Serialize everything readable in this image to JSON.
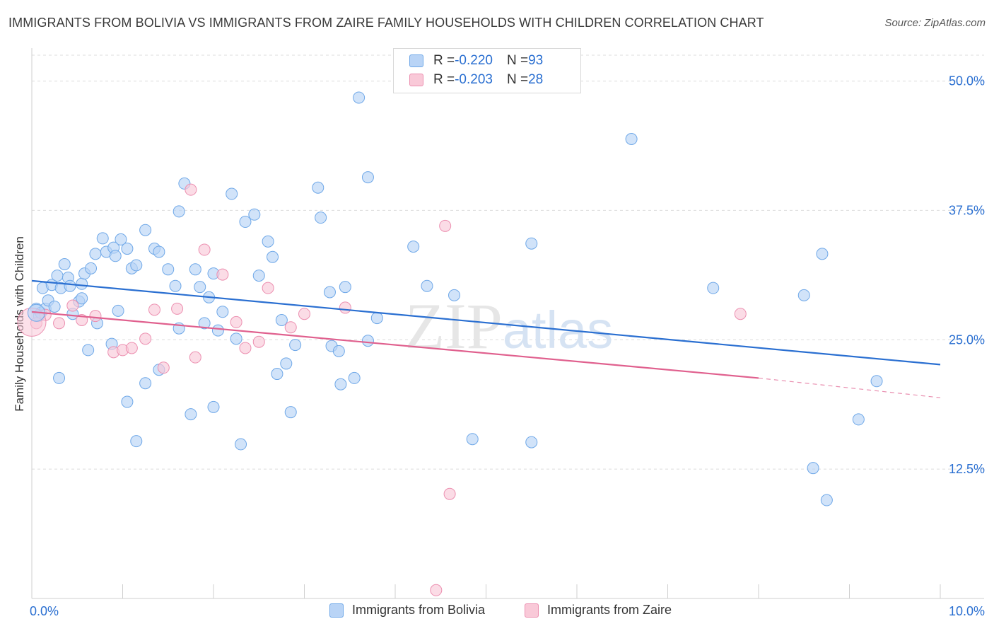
{
  "title": "IMMIGRANTS FROM BOLIVIA VS IMMIGRANTS FROM ZAIRE FAMILY HOUSEHOLDS WITH CHILDREN CORRELATION CHART",
  "source": "Source: ZipAtlas.com",
  "watermark": "ZIPatlas",
  "stats": [
    {
      "r_label": "R = ",
      "r_value": "-0.220",
      "n_label": "N = ",
      "n_value": "93",
      "color": "#6fa8e8",
      "fill": "#b9d4f6"
    },
    {
      "r_label": "R = ",
      "r_value": "-0.203",
      "n_label": "N = ",
      "n_value": "28",
      "color": "#ec8fb0",
      "fill": "#f9c9d8"
    }
  ],
  "chart_data": {
    "type": "scatter",
    "title": "IMMIGRANTS FROM BOLIVIA VS IMMIGRANTS FROM ZAIRE FAMILY HOUSEHOLDS WITH CHILDREN CORRELATION CHART",
    "xlabel": "",
    "ylabel": "Family Households with Children",
    "xlim": [
      0,
      10
    ],
    "ylim": [
      0,
      52.5
    ],
    "x_tick_labels": [
      {
        "value": 0,
        "label": "0.0%"
      },
      {
        "value": 10,
        "label": "10.0%"
      }
    ],
    "y_tick_labels": [
      {
        "value": 12.5,
        "label": "12.5%"
      },
      {
        "value": 25,
        "label": "25.0%"
      },
      {
        "value": 37.5,
        "label": "37.5%"
      },
      {
        "value": 50,
        "label": "50.0%"
      }
    ],
    "grid": "horizontal dashed",
    "legend_position": "bottom-center",
    "series": [
      {
        "name": "Immigrants from Bolivia",
        "color": "#6fa8e8",
        "fill": "#b9d4f6",
        "line_color": "#2a6fd1",
        "trend": {
          "x0": 0,
          "y0": 30.7,
          "x1": 10,
          "y1": 22.6
        },
        "points": [
          [
            0.05,
            28.0
          ],
          [
            0.08,
            27.3
          ],
          [
            0.1,
            27.6
          ],
          [
            0.12,
            30.0
          ],
          [
            0.15,
            28.0
          ],
          [
            0.18,
            28.8
          ],
          [
            0.22,
            30.3
          ],
          [
            0.28,
            31.2
          ],
          [
            0.32,
            30.0
          ],
          [
            0.36,
            32.3
          ],
          [
            0.4,
            31.0
          ],
          [
            0.42,
            30.2
          ],
          [
            0.45,
            27.5
          ],
          [
            0.52,
            28.7
          ],
          [
            0.55,
            30.4
          ],
          [
            0.58,
            31.4
          ],
          [
            0.65,
            31.9
          ],
          [
            0.7,
            33.3
          ],
          [
            0.78,
            34.8
          ],
          [
            0.82,
            33.5
          ],
          [
            0.9,
            33.9
          ],
          [
            0.92,
            33.1
          ],
          [
            0.98,
            34.7
          ],
          [
            1.05,
            33.8
          ],
          [
            1.1,
            31.9
          ],
          [
            1.15,
            32.2
          ],
          [
            1.25,
            35.6
          ],
          [
            1.35,
            33.8
          ],
          [
            1.4,
            33.5
          ],
          [
            1.5,
            31.8
          ],
          [
            1.58,
            30.2
          ],
          [
            1.62,
            37.4
          ],
          [
            1.68,
            40.1
          ],
          [
            1.8,
            31.8
          ],
          [
            1.85,
            30.1
          ],
          [
            1.9,
            26.6
          ],
          [
            1.95,
            29.1
          ],
          [
            2.0,
            31.4
          ],
          [
            2.05,
            25.9
          ],
          [
            2.1,
            27.7
          ],
          [
            2.2,
            39.1
          ],
          [
            2.25,
            25.1
          ],
          [
            2.35,
            36.4
          ],
          [
            2.45,
            37.1
          ],
          [
            2.5,
            31.2
          ],
          [
            2.6,
            34.5
          ],
          [
            2.65,
            33.0
          ],
          [
            2.75,
            26.9
          ],
          [
            2.85,
            18.0
          ],
          [
            2.9,
            24.5
          ],
          [
            3.15,
            39.7
          ],
          [
            3.18,
            36.8
          ],
          [
            3.28,
            29.6
          ],
          [
            3.3,
            24.4
          ],
          [
            3.38,
            23.9
          ],
          [
            3.4,
            20.7
          ],
          [
            3.45,
            30.1
          ],
          [
            3.55,
            21.3
          ],
          [
            3.6,
            48.4
          ],
          [
            3.7,
            40.7
          ],
          [
            3.7,
            24.9
          ],
          [
            3.8,
            27.1
          ],
          [
            4.2,
            34.0
          ],
          [
            4.35,
            30.2
          ],
          [
            4.85,
            15.4
          ],
          [
            4.65,
            29.3
          ],
          [
            5.5,
            34.3
          ],
          [
            5.5,
            15.1
          ],
          [
            6.6,
            44.4
          ],
          [
            7.5,
            30.0
          ],
          [
            8.7,
            33.3
          ],
          [
            9.1,
            17.3
          ],
          [
            9.3,
            21.0
          ],
          [
            8.5,
            29.3
          ],
          [
            8.6,
            12.6
          ],
          [
            8.75,
            9.5
          ],
          [
            2.3,
            14.9
          ],
          [
            2.8,
            22.7
          ],
          [
            2.7,
            21.7
          ],
          [
            2.0,
            18.5
          ],
          [
            1.75,
            17.8
          ],
          [
            1.62,
            26.1
          ],
          [
            1.4,
            22.1
          ],
          [
            1.25,
            20.8
          ],
          [
            1.15,
            15.2
          ],
          [
            1.05,
            19.0
          ],
          [
            0.95,
            27.8
          ],
          [
            0.88,
            24.6
          ],
          [
            0.72,
            26.6
          ],
          [
            0.62,
            24.0
          ],
          [
            0.3,
            21.3
          ],
          [
            0.55,
            29.0
          ],
          [
            0.25,
            28.2
          ]
        ]
      },
      {
        "name": "Immigrants from Zaire",
        "color": "#ec8fb0",
        "fill": "#f9c9d8",
        "line_color": "#e0608e",
        "trend": {
          "x0": 0,
          "y0": 27.7,
          "x1": 8.0,
          "y1": 21.3
        },
        "trend_dashed": {
          "x0": 8.0,
          "y0": 21.3,
          "x1": 10,
          "y1": 19.4
        },
        "points": [
          [
            0.05,
            26.6
          ],
          [
            0.15,
            27.4
          ],
          [
            0.3,
            26.6
          ],
          [
            0.45,
            28.3
          ],
          [
            0.55,
            26.9
          ],
          [
            0.7,
            27.3
          ],
          [
            0.9,
            23.8
          ],
          [
            1.0,
            24.0
          ],
          [
            1.1,
            24.2
          ],
          [
            1.25,
            25.1
          ],
          [
            1.35,
            27.9
          ],
          [
            1.45,
            22.3
          ],
          [
            1.6,
            28.0
          ],
          [
            1.75,
            39.5
          ],
          [
            1.8,
            23.3
          ],
          [
            1.9,
            33.7
          ],
          [
            2.1,
            31.3
          ],
          [
            2.25,
            26.7
          ],
          [
            2.35,
            24.2
          ],
          [
            2.5,
            24.8
          ],
          [
            2.6,
            30.0
          ],
          [
            2.85,
            26.2
          ],
          [
            3.0,
            27.5
          ],
          [
            3.45,
            28.1
          ],
          [
            4.55,
            36.0
          ],
          [
            4.6,
            10.1
          ],
          [
            4.45,
            0.8
          ],
          [
            7.8,
            27.5
          ]
        ]
      }
    ]
  },
  "legend": [
    {
      "label": "Immigrants from Bolivia"
    },
    {
      "label": "Immigrants from Zaire"
    }
  ]
}
